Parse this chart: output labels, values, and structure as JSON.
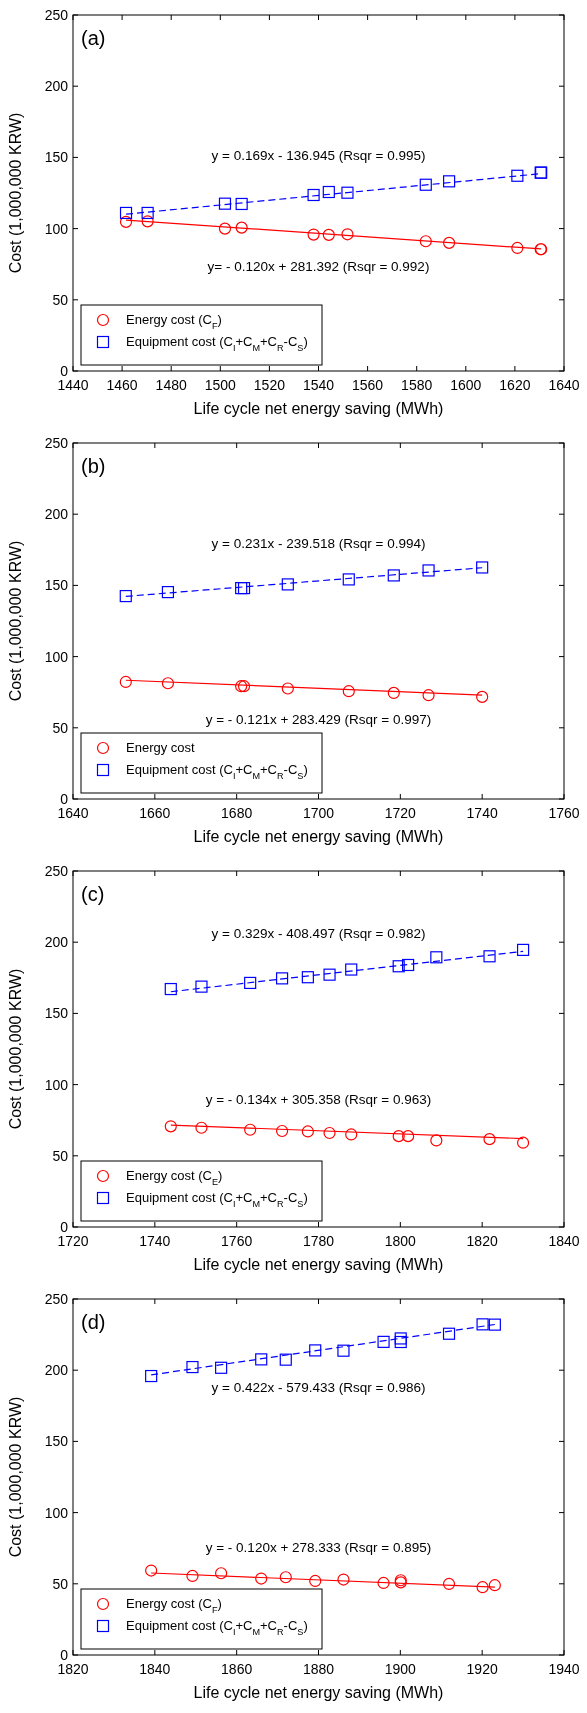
{
  "chart_data": [
    {
      "type": "scatter",
      "xlabel": "Life cycle net energy saving (MWh)",
      "ylabel": "Cost (1,000,000 KRW)",
      "xlim": [
        1440,
        1640
      ],
      "xticks": [
        1440,
        1460,
        1480,
        1500,
        1520,
        1540,
        1560,
        1580,
        1600,
        1620,
        1640
      ],
      "ylim": [
        0,
        250
      ],
      "yticks": [
        0,
        50,
        100,
        150,
        200,
        250
      ],
      "legend": "bottom left",
      "grid": false,
      "annotations": [
        "(a)",
        "y = 0.169x - 136.945 (Rsqr = 0.995)",
        "y= - 0.120x + 281.392 (Rsqr = 0.992)"
      ],
      "series": [
        {
          "name": "Energy cost (C$_{F}$)",
          "type": "scatter",
          "marker": "circle",
          "color": "#ff0000",
          "x": [
            1461.6,
            1470.4,
            1501.9,
            1508.7,
            1538,
            1544.2,
            1551.8,
            1583.7,
            1593.2,
            1621,
            1630.5,
            1630.7
          ],
          "values": [
            104.7,
            105.1,
            100,
            100.7,
            95.8,
            95.6,
            96,
            91.1,
            90,
            86.4,
            85.5,
            85.5
          ]
        },
        {
          "name": "Equipment cost (C$_{I}$+C$_{M}$+C$_{R}$-C$_{S}$)",
          "type": "scatter",
          "marker": "square",
          "color": "#0000ff",
          "x": [
            1461.6,
            1470.4,
            1501.9,
            1508.7,
            1538,
            1544.2,
            1551.8,
            1583.7,
            1593.2,
            1621,
            1630.5,
            1630.7
          ],
          "values": [
            111,
            111,
            117.5,
            117.3,
            123.6,
            125.7,
            125.2,
            130.8,
            133.2,
            137.1,
            139.3,
            139.3
          ]
        },
        {
          "type": "line",
          "line_style": "solid",
          "marker": "none",
          "color": "#ff0000",
          "x": [
            1461.6,
            1630.7
          ],
          "values": [
            106,
            85.7
          ]
        },
        {
          "type": "line",
          "line_style": "dashed",
          "marker": "none",
          "color": "#0000ff",
          "x": [
            1461.6,
            1630.7
          ],
          "values": [
            110.1,
            138.6
          ]
        }
      ]
    },
    {
      "type": "scatter",
      "xlabel": "Life cycle net energy saving (MWh)",
      "ylabel": "Cost (1,000,000 KRW)",
      "xlim": [
        1640,
        1760
      ],
      "xticks": [
        1640,
        1660,
        1680,
        1700,
        1720,
        1740,
        1760
      ],
      "ylim": [
        0,
        250
      ],
      "yticks": [
        0,
        50,
        100,
        150,
        200,
        250
      ],
      "legend": "bottom left",
      "grid": false,
      "annotations": [
        "(b)",
        "y = 0.231x - 239.518 (Rsqr = 0.994)",
        "y = - 0.121x + 283.429 (Rsqr = 0.997)"
      ],
      "series": [
        {
          "name": "Energy cost",
          "type": "scatter",
          "marker": "circle",
          "color": "#ff0000",
          "x": [
            1652.9,
            1663.2,
            1681.1,
            1681.8,
            1692.5,
            1707.4,
            1718.4,
            1726.9,
            1740
          ],
          "values": [
            82.2,
            81.3,
            79.2,
            79.2,
            77.6,
            75.7,
            74.5,
            72.9,
            71.7
          ]
        },
        {
          "name": "Equipment cost (C$_{I}$+C$_{M}$+C$_{R}$-C$_{S}$)",
          "type": "scatter",
          "marker": "square",
          "color": "#0000ff",
          "x": [
            1652.9,
            1663.2,
            1681.1,
            1681.8,
            1692.5,
            1707.4,
            1718.4,
            1726.9,
            1740
          ],
          "values": [
            142.5,
            145.3,
            148.1,
            148.1,
            150.7,
            154.2,
            157,
            160.5,
            162.6
          ]
        },
        {
          "type": "line",
          "line_style": "solid",
          "marker": "none",
          "color": "#ff0000",
          "x": [
            1652.9,
            1740
          ],
          "values": [
            83.4,
            72.9
          ]
        },
        {
          "type": "line",
          "line_style": "dashed",
          "marker": "none",
          "color": "#0000ff",
          "x": [
            1652.9,
            1740
          ],
          "values": [
            142.3,
            162.4
          ]
        }
      ]
    },
    {
      "type": "scatter",
      "xlabel": "Life cycle net energy saving (MWh)",
      "ylabel": "Cost (1,000,000 KRW)",
      "xlim": [
        1720,
        1840
      ],
      "xticks": [
        1720,
        1740,
        1760,
        1780,
        1800,
        1820,
        1840
      ],
      "ylim": [
        0,
        250
      ],
      "yticks": [
        0,
        50,
        100,
        150,
        200,
        250
      ],
      "legend": "bottom left",
      "grid": false,
      "annotations": [
        "(c)",
        "y = 0.329x - 408.497 (Rsqr = 0.982)",
        "y = - 0.134x + 305.358 (Rsqr = 0.963)"
      ],
      "series": [
        {
          "name": "Energy cost (C$_{E}$)",
          "type": "scatter",
          "marker": "circle",
          "color": "#ff0000",
          "x": [
            1743.9,
            1751.4,
            1763.3,
            1771.1,
            1777.4,
            1782.7,
            1788,
            1799.6,
            1801.9,
            1808.8,
            1821.8,
            1830
          ],
          "values": [
            70.7,
            69.7,
            68.3,
            67.4,
            67.1,
            66,
            65,
            63.8,
            63.8,
            60.8,
            61.7,
            59.2
          ]
        },
        {
          "name": "Equipment cost (C$_{I}$+C$_{M}$+C$_{R}$-C$_{S}$)",
          "type": "scatter",
          "marker": "square",
          "color": "#0000ff",
          "x": [
            1743.9,
            1751.4,
            1763.3,
            1771.1,
            1777.4,
            1782.7,
            1788,
            1799.6,
            1801.9,
            1808.8,
            1821.8,
            1830
          ],
          "values": [
            167.1,
            168.8,
            171.4,
            174.6,
            175.4,
            177.2,
            180.8,
            183.1,
            184,
            189.4,
            190.1,
            194.6
          ]
        },
        {
          "type": "line",
          "line_style": "solid",
          "marker": "none",
          "color": "#ff0000",
          "x": [
            1743.9,
            1830
          ],
          "values": [
            71.6,
            62.1
          ]
        },
        {
          "type": "line",
          "line_style": "dashed",
          "marker": "none",
          "color": "#0000ff",
          "x": [
            1743.9,
            1830
          ],
          "values": [
            165.2,
            193.6
          ]
        }
      ]
    },
    {
      "type": "scatter",
      "xlabel": "Life cycle net energy saving (MWh)",
      "ylabel": "Cost (1,000,000 KRW)",
      "xlim": [
        1820,
        1940
      ],
      "xticks": [
        1820,
        1840,
        1860,
        1880,
        1900,
        1920,
        1940
      ],
      "ylim": [
        0,
        250
      ],
      "yticks": [
        0,
        50,
        100,
        150,
        200,
        250
      ],
      "legend": "bottom left",
      "grid": false,
      "annotations": [
        "(d)",
        "y = 0.422x - 579.433 (Rsqr = 0.986)",
        "y = - 0.120x + 278.333 (Rsqr = 0.895)"
      ],
      "series": [
        {
          "name": "Energy cost (C$_{F}$)",
          "type": "scatter",
          "marker": "circle",
          "color": "#ff0000",
          "x": [
            1839.1,
            1849.2,
            1856.2,
            1866,
            1872,
            1879.2,
            1886.1,
            1895.9,
            1900.1,
            1900.1,
            1911.9,
            1920.1,
            1923.1
          ],
          "values": [
            59.3,
            55.5,
            57.4,
            53.7,
            54.6,
            52,
            53,
            50.6,
            52.5,
            51,
            49.9,
            47.6,
            49
          ]
        },
        {
          "name": "Equipment cost (C$_{I}$+C$_{M}$+C$_{R}$-C$_{S}$)",
          "type": "scatter",
          "marker": "square",
          "color": "#0000ff",
          "x": [
            1839.1,
            1849.2,
            1856.2,
            1866,
            1872,
            1879.2,
            1886.1,
            1895.9,
            1900.1,
            1900.1,
            1911.9,
            1920.1,
            1923.1
          ],
          "values": [
            195.9,
            202.2,
            201.7,
            207.6,
            207.4,
            213.9,
            213.7,
            219.9,
            222.3,
            219.8,
            225.6,
            232.2,
            232
          ]
        },
        {
          "type": "line",
          "line_style": "solid",
          "marker": "none",
          "color": "#ff0000",
          "x": [
            1839.1,
            1923.1
          ],
          "values": [
            57.6,
            47.6
          ]
        },
        {
          "type": "line",
          "line_style": "dashed",
          "marker": "none",
          "color": "#0000ff",
          "x": [
            1839.1,
            1923.1
          ],
          "values": [
            196.7,
            232.1
          ]
        }
      ]
    }
  ]
}
